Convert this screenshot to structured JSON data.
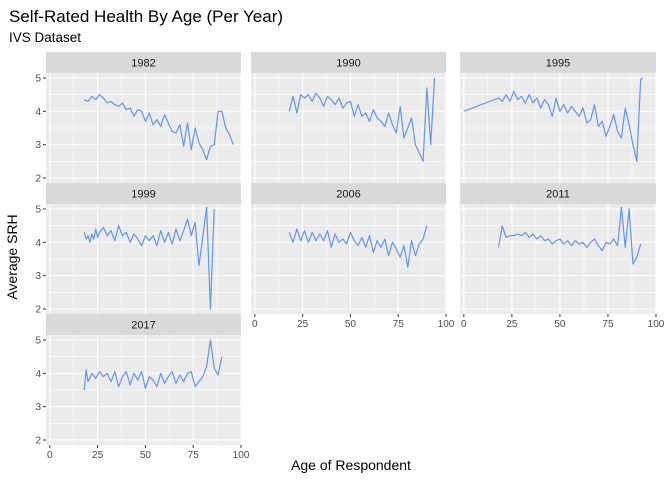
{
  "chart_data": {
    "type": "line",
    "title": "Self-Rated Health By Age (Per Year)",
    "subtitle": "IVS Dataset",
    "xlabel": "Age of Respondent",
    "ylabel": "Average SRH",
    "xlim": [
      -2,
      100
    ],
    "ylim": [
      1.85,
      5.15
    ],
    "x_ticks": [
      0,
      25,
      50,
      75,
      100
    ],
    "y_ticks": [
      2,
      3,
      4,
      5
    ],
    "line_color": "#6495ED",
    "panel_background": "#EBEBEB",
    "strip_background": "#D9D9D9",
    "grid": true,
    "facet_columns": 3,
    "facets": [
      {
        "label": "1982",
        "x": [
          18,
          20,
          22,
          24,
          26,
          28,
          30,
          32,
          34,
          36,
          38,
          40,
          42,
          44,
          46,
          48,
          50,
          52,
          54,
          56,
          58,
          60,
          62,
          64,
          66,
          68,
          70,
          72,
          74,
          76,
          78,
          80,
          82,
          84,
          86,
          88,
          90,
          92,
          94,
          96
        ],
        "y": [
          4.35,
          4.3,
          4.45,
          4.35,
          4.5,
          4.4,
          4.25,
          4.3,
          4.2,
          4.15,
          4.25,
          4.05,
          4.1,
          3.85,
          4.05,
          4.0,
          3.7,
          3.95,
          3.6,
          3.75,
          3.55,
          3.9,
          3.65,
          3.4,
          3.35,
          3.6,
          2.95,
          3.65,
          2.85,
          3.5,
          3.05,
          2.85,
          2.55,
          2.95,
          3.0,
          4.0,
          4.0,
          3.5,
          3.3,
          3.0
        ]
      },
      {
        "label": "1990",
        "x": [
          18,
          20,
          22,
          24,
          26,
          28,
          30,
          32,
          34,
          36,
          38,
          40,
          42,
          44,
          46,
          48,
          50,
          52,
          54,
          56,
          58,
          60,
          62,
          64,
          66,
          68,
          70,
          72,
          74,
          76,
          78,
          80,
          82,
          84,
          86,
          88,
          90,
          92,
          94
        ],
        "y": [
          4.0,
          4.45,
          3.95,
          4.5,
          4.4,
          4.5,
          4.3,
          4.55,
          4.4,
          4.15,
          4.45,
          4.35,
          4.2,
          4.4,
          4.1,
          4.25,
          4.3,
          3.85,
          4.2,
          3.85,
          3.95,
          3.7,
          4.05,
          3.8,
          3.7,
          3.55,
          3.95,
          3.6,
          3.35,
          4.15,
          3.2,
          3.5,
          3.8,
          3.0,
          2.75,
          2.5,
          4.7,
          3.0,
          5.0
        ]
      },
      {
        "label": "1995",
        "x": [
          0,
          18,
          20,
          22,
          24,
          26,
          28,
          30,
          32,
          34,
          36,
          38,
          40,
          42,
          44,
          46,
          48,
          50,
          52,
          54,
          56,
          58,
          60,
          62,
          64,
          66,
          68,
          70,
          72,
          74,
          76,
          78,
          80,
          82,
          84,
          86,
          88,
          90,
          92,
          93
        ],
        "y": [
          4.0,
          4.4,
          4.3,
          4.5,
          4.3,
          4.6,
          4.35,
          4.45,
          4.25,
          4.5,
          4.25,
          4.4,
          4.1,
          4.35,
          4.2,
          3.85,
          4.4,
          4.0,
          4.2,
          3.95,
          4.15,
          4.0,
          3.85,
          4.1,
          3.65,
          3.75,
          4.2,
          3.55,
          3.7,
          3.25,
          3.55,
          3.9,
          3.4,
          3.2,
          4.1,
          3.6,
          3.0,
          2.5,
          4.95,
          5.0
        ]
      },
      {
        "label": "1999",
        "x": [
          18,
          19,
          20,
          21,
          22,
          23,
          24,
          25,
          26,
          28,
          30,
          32,
          34,
          36,
          38,
          40,
          42,
          44,
          46,
          48,
          50,
          52,
          54,
          56,
          58,
          60,
          62,
          64,
          66,
          68,
          70,
          72,
          74,
          76,
          78,
          80,
          82,
          84,
          86
        ],
        "y": [
          4.3,
          4.1,
          4.2,
          4.0,
          4.25,
          4.1,
          4.4,
          4.15,
          4.3,
          4.45,
          4.2,
          4.35,
          4.05,
          4.5,
          4.2,
          4.3,
          4.0,
          4.25,
          4.1,
          3.9,
          4.2,
          4.05,
          4.2,
          3.9,
          4.35,
          4.0,
          4.3,
          3.95,
          4.4,
          4.05,
          4.35,
          4.7,
          4.2,
          4.6,
          3.3,
          4.15,
          5.05,
          2.0,
          5.0
        ]
      },
      {
        "label": "2006",
        "x": [
          18,
          20,
          22,
          24,
          26,
          28,
          30,
          32,
          34,
          36,
          38,
          40,
          42,
          44,
          46,
          48,
          50,
          52,
          54,
          56,
          58,
          60,
          62,
          64,
          66,
          68,
          70,
          72,
          74,
          76,
          78,
          80,
          82,
          84,
          86,
          88,
          90
        ],
        "y": [
          4.3,
          4.0,
          4.4,
          4.05,
          4.35,
          4.0,
          4.3,
          4.05,
          4.25,
          4.05,
          4.35,
          3.85,
          4.25,
          4.0,
          4.1,
          3.95,
          4.3,
          4.05,
          3.9,
          4.15,
          3.85,
          4.2,
          3.7,
          4.05,
          3.85,
          4.1,
          3.6,
          4.0,
          3.8,
          3.55,
          3.9,
          3.25,
          4.05,
          3.6,
          3.95,
          4.1,
          4.5
        ]
      },
      {
        "label": "2011",
        "x": [
          18,
          20,
          22,
          24,
          26,
          28,
          30,
          32,
          34,
          36,
          38,
          40,
          42,
          44,
          46,
          48,
          50,
          52,
          54,
          56,
          58,
          60,
          62,
          64,
          66,
          68,
          70,
          72,
          74,
          76,
          78,
          80,
          82,
          84,
          86,
          88,
          90,
          92
        ],
        "y": [
          3.85,
          4.5,
          4.15,
          4.2,
          4.2,
          4.25,
          4.2,
          4.3,
          4.15,
          4.25,
          4.1,
          4.2,
          4.05,
          4.1,
          3.95,
          4.05,
          4.1,
          3.95,
          4.05,
          3.9,
          4.05,
          3.95,
          4.0,
          3.85,
          4.0,
          4.1,
          3.9,
          3.75,
          4.0,
          3.95,
          4.1,
          3.9,
          5.05,
          3.85,
          5.0,
          3.35,
          3.55,
          3.95
        ]
      },
      {
        "label": "2017",
        "x": [
          18,
          19,
          20,
          22,
          24,
          26,
          28,
          30,
          32,
          34,
          36,
          38,
          40,
          42,
          44,
          46,
          48,
          50,
          52,
          54,
          56,
          58,
          60,
          62,
          64,
          66,
          68,
          70,
          72,
          74,
          76,
          78,
          80,
          82,
          84,
          86,
          88,
          90
        ],
        "y": [
          3.5,
          4.1,
          3.75,
          4.0,
          3.85,
          4.05,
          3.9,
          4.0,
          3.75,
          4.05,
          3.6,
          3.9,
          4.05,
          3.65,
          4.0,
          3.8,
          4.05,
          3.55,
          3.9,
          3.8,
          3.6,
          4.0,
          3.7,
          3.9,
          4.05,
          3.7,
          3.95,
          3.75,
          4.0,
          4.05,
          3.6,
          3.75,
          3.9,
          4.2,
          5.0,
          4.15,
          3.95,
          4.5
        ]
      }
    ]
  }
}
